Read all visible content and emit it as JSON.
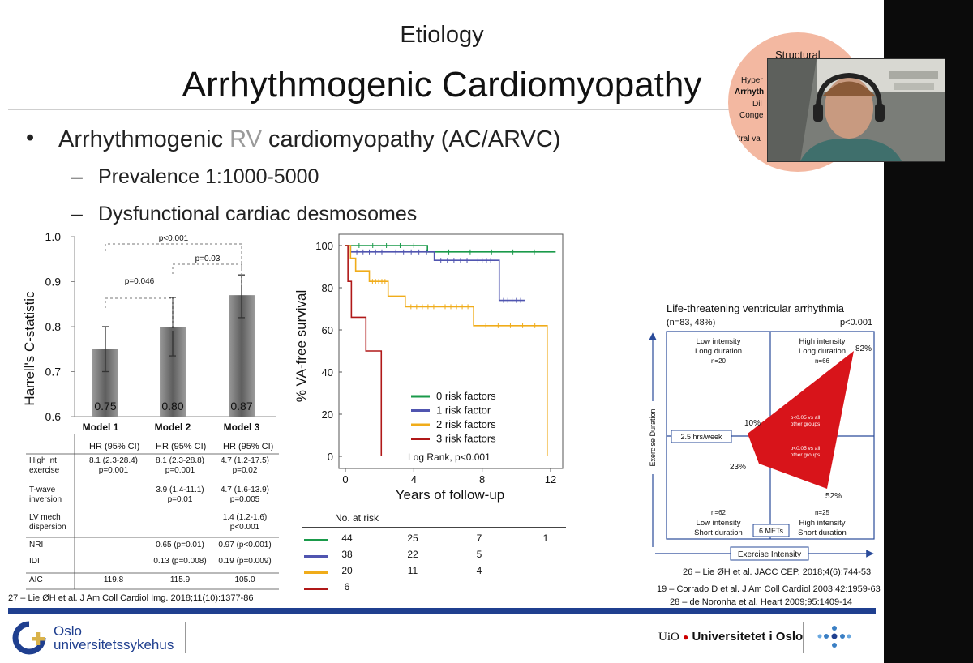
{
  "slide": {
    "title_top": "Etiology",
    "title_main": "Arrhythmogenic Cardiomyopathy",
    "bullet_pre": "Arrhythmogenic ",
    "bullet_rv": "RV",
    "bullet_post": " cardiomyopathy (AC/ARVC)",
    "sub1": "Prevalence 1:1000-5000",
    "sub2": "Dysfunctional cardiac desmosomes",
    "circle_labels": [
      "Structural",
      "Hyper",
      "Arrhyth",
      "Dil",
      "Conge",
      "Mitral va"
    ],
    "colors": {
      "rv": "#9a9a9a",
      "accent_bar": "#1f3f8f",
      "circle": "#f3b8a1"
    }
  },
  "bar_chart": {
    "type": "bar",
    "ylabel": "Harrell's C-statistic",
    "ylim": [
      0.6,
      1.0
    ],
    "yticks": [
      "1.0",
      "0.9",
      "0.8",
      "0.7",
      "0.6"
    ],
    "categories": [
      "Model 1",
      "Model 2",
      "Model 3"
    ],
    "values": [
      0.75,
      0.8,
      0.87
    ],
    "value_labels": [
      "0.75",
      "0.80",
      "0.87"
    ],
    "error_low": [
      0.7,
      0.735,
      0.82
    ],
    "error_high": [
      0.8,
      0.865,
      0.915
    ],
    "comparisons": [
      "p<0.001",
      "p=0.046",
      "p=0.03"
    ]
  },
  "hr_table": {
    "header": "HR (95% CI)",
    "rows": [
      {
        "label": "High int exercise",
        "m1": [
          "8.1 (2.3-28.4)",
          "p=0.001"
        ],
        "m2": [
          "8.1 (2.3-28.8)",
          "p=0.001"
        ],
        "m3": [
          "4.7 (1.2-17.5)",
          "p=0.02"
        ]
      },
      {
        "label": "T-wave inversion",
        "m1": [
          "",
          ""
        ],
        "m2": [
          "3.9 (1.4-11.1)",
          "p=0.01"
        ],
        "m3": [
          "4.7 (1.6-13.9)",
          "p=0.005"
        ]
      },
      {
        "label": "LV mech dispersion",
        "m1": [
          "",
          ""
        ],
        "m2": [
          "",
          ""
        ],
        "m3": [
          "1.4 (1.2-1.6)",
          "p<0.001"
        ]
      },
      {
        "label": "NRI",
        "m1": [
          ""
        ],
        "m2": [
          "0.65 (p=0.01)"
        ],
        "m3": [
          "0.97 (p<0.001)"
        ]
      },
      {
        "label": "IDI",
        "m1": [
          ""
        ],
        "m2": [
          "0.13 (p=0.008)"
        ],
        "m3": [
          "0.19 (p=0.009)"
        ]
      },
      {
        "label": "AIC",
        "m1": [
          "119.8"
        ],
        "m2": [
          "115.9"
        ],
        "m3": [
          "105.0"
        ]
      }
    ],
    "citation": "27 – Lie ØH et al. J Am Coll Cardiol Img. 2018;11(10):1377-86"
  },
  "km_chart": {
    "type": "line",
    "ylabel": "% VA-free survival",
    "xlabel": "Years of follow-up",
    "xlim": [
      0,
      13
    ],
    "ylim": [
      0,
      100
    ],
    "xticks": [
      "0",
      "4",
      "8",
      "12"
    ],
    "yticks": [
      "100",
      "80",
      "60",
      "40",
      "20",
      "0"
    ],
    "log_rank": "Log Rank, p<0.001",
    "series": [
      {
        "name": "0 risk factors",
        "color": "#1a9a4a",
        "x": [
          0,
          4.8,
          12.3
        ],
        "y": [
          100,
          97,
          97
        ]
      },
      {
        "name": "1 risk factor",
        "color": "#5055b0",
        "x": [
          0,
          0.3,
          2.5,
          5.2,
          7.5,
          9,
          10.5
        ],
        "y": [
          100,
          97,
          97,
          93,
          93,
          74,
          74
        ]
      },
      {
        "name": "2 risk factors",
        "color": "#f0ac1a",
        "x": [
          0,
          0.3,
          0.6,
          1.4,
          2.5,
          3.5,
          5.5,
          7.5,
          11.8,
          11.8
        ],
        "y": [
          100,
          94,
          88,
          83,
          76,
          71,
          71,
          62,
          62,
          0
        ]
      },
      {
        "name": "3 risk factors",
        "color": "#b01818",
        "x": [
          0,
          0.15,
          0.35,
          1.2,
          2.1,
          2.1
        ],
        "y": [
          100,
          83,
          66,
          50,
          33,
          0
        ]
      }
    ],
    "at_risk_title": "No. at risk",
    "at_risk": [
      {
        "color": "#1a9a4a",
        "values": [
          "44",
          "25",
          "7",
          "1"
        ]
      },
      {
        "color": "#5055b0",
        "values": [
          "38",
          "22",
          "5",
          ""
        ]
      },
      {
        "color": "#f0ac1a",
        "values": [
          "20",
          "11",
          "4",
          ""
        ]
      },
      {
        "color": "#b01818",
        "values": [
          "6",
          "",
          "",
          ""
        ]
      }
    ]
  },
  "quad_chart": {
    "title": "Life-threatening ventricular arrhythmia",
    "subtitle_left": "(n=83, 48%)",
    "subtitle_right": "p<0.001",
    "q_tl": [
      "Low intensity",
      "Long duration",
      "n=20"
    ],
    "q_tr": [
      "High intensity",
      "Long duration",
      "n=66"
    ],
    "q_bl": [
      "n=62",
      "Low intensity",
      "Short duration"
    ],
    "q_br": [
      "n=25",
      "High intensity",
      "Short duration"
    ],
    "pct_tr": "82%",
    "pct_tl": "10%",
    "pct_bl": "23%",
    "pct_br": "52%",
    "inner1": [
      "p<0.05 vs all",
      "other groups"
    ],
    "inner2": [
      "p<0.05 vs all",
      "other groups"
    ],
    "threshold_y": "2.5 hrs/week",
    "threshold_x": "6 METs",
    "yaxis": "Exercise Duration",
    "xaxis": "Exercise Intensity",
    "citations": [
      "26 – Lie ØH et al. JACC CEP. 2018;4(6):744-53",
      "19 – Corrado D et al. J Am Coll Cardiol 2003;42:1959-63",
      "28 – de Noronha et al. Heart 2009;95:1409-14"
    ]
  },
  "footer": {
    "oslo_line1": "Oslo",
    "oslo_line2": "universitetssykehus",
    "uio_prefix": "UiO",
    "uio_name": "Universitetet i Oslo"
  }
}
